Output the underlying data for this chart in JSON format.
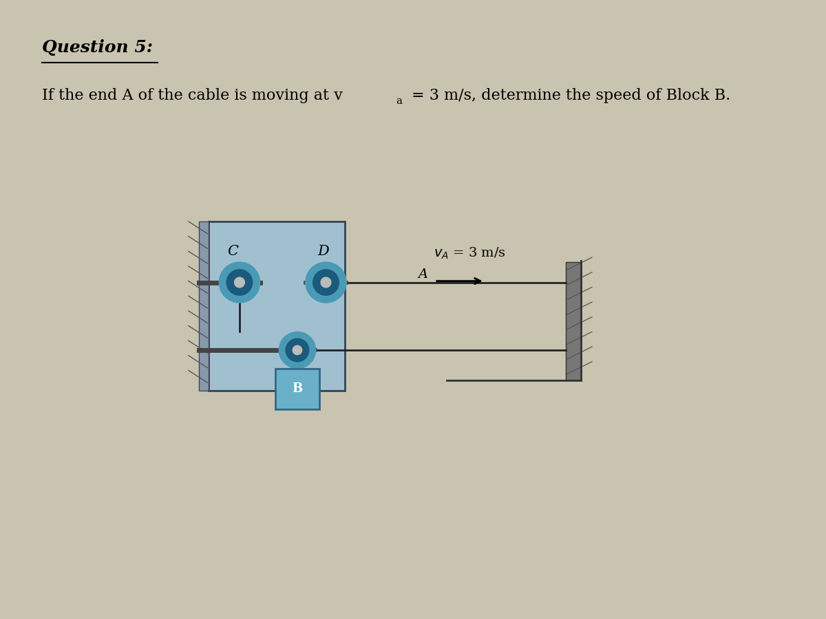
{
  "bg_color": "#c8c4b0",
  "title_text": "Question 5:",
  "label_A": "A",
  "label_C": "C",
  "label_D": "D",
  "label_B": "B",
  "va_label": "vA = 3 m/s",
  "cable_color": "#222222",
  "pulley_outer_color": "#4a9ab5",
  "pulley_inner_color": "#1a5a7a",
  "pulley_hub_color": "#bbbbbb",
  "block_color": "#6ab0c8",
  "block_edge_color": "#336688",
  "frame_facecolor": "#a0c0d0",
  "frame_edgecolor": "#334455",
  "text_color": "#000000",
  "arrow_color": "#000000",
  "wall_color": "#777777",
  "wall_hatch_color": "#555555"
}
